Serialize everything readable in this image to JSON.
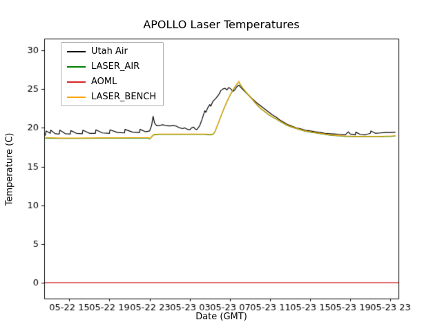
{
  "chart_data": {
    "type": "line",
    "title": "APOLLO Laser Temperatures",
    "xlabel": "Date (GMT)",
    "ylabel": "Temperature (C)",
    "xlim": [
      12.5,
      47.8
    ],
    "ylim": [
      -2,
      31.5
    ],
    "grid": false,
    "legend_position": "upper left",
    "yticks": [
      0,
      5,
      10,
      15,
      20,
      25,
      30
    ],
    "xticks": [
      {
        "value": 15,
        "label": "05-22 15"
      },
      {
        "value": 19,
        "label": "05-22 19"
      },
      {
        "value": 23,
        "label": "05-22 23"
      },
      {
        "value": 27,
        "label": "05-23 03"
      },
      {
        "value": 31,
        "label": "05-23 07"
      },
      {
        "value": 35,
        "label": "05-23 11"
      },
      {
        "value": 39,
        "label": "05-23 15"
      },
      {
        "value": 43,
        "label": "05-23 19"
      },
      {
        "value": 47,
        "label": "05-23 23"
      }
    ],
    "series": [
      {
        "name": "Utah Air",
        "color": "#000000",
        "points": [
          [
            12.6,
            19.0
          ],
          [
            12.7,
            19.6
          ],
          [
            13.1,
            19.3
          ],
          [
            13.15,
            19.7
          ],
          [
            13.6,
            19.25
          ],
          [
            14.0,
            19.2
          ],
          [
            14.05,
            19.7
          ],
          [
            14.6,
            19.25
          ],
          [
            15.1,
            19.2
          ],
          [
            15.15,
            19.65
          ],
          [
            15.7,
            19.3
          ],
          [
            16.3,
            19.25
          ],
          [
            16.35,
            19.7
          ],
          [
            17.0,
            19.3
          ],
          [
            17.6,
            19.3
          ],
          [
            17.65,
            19.75
          ],
          [
            18.3,
            19.35
          ],
          [
            19.0,
            19.3
          ],
          [
            19.05,
            19.75
          ],
          [
            19.8,
            19.4
          ],
          [
            20.5,
            19.35
          ],
          [
            20.55,
            19.8
          ],
          [
            21.3,
            19.45
          ],
          [
            22.0,
            19.4
          ],
          [
            22.05,
            19.8
          ],
          [
            22.6,
            19.5
          ],
          [
            23.0,
            19.6
          ],
          [
            23.2,
            20.3
          ],
          [
            23.35,
            21.5
          ],
          [
            23.5,
            20.6
          ],
          [
            23.7,
            20.3
          ],
          [
            24.0,
            20.3
          ],
          [
            24.3,
            20.4
          ],
          [
            24.6,
            20.3
          ],
          [
            25.0,
            20.25
          ],
          [
            25.4,
            20.3
          ],
          [
            25.7,
            20.2
          ],
          [
            26.0,
            20.0
          ],
          [
            26.3,
            19.9
          ],
          [
            26.5,
            20.0
          ],
          [
            26.8,
            19.8
          ],
          [
            27.0,
            19.75
          ],
          [
            27.2,
            20.0
          ],
          [
            27.4,
            20.1
          ],
          [
            27.5,
            19.9
          ],
          [
            27.7,
            19.75
          ],
          [
            28.0,
            20.3
          ],
          [
            28.2,
            21.0
          ],
          [
            28.4,
            21.8
          ],
          [
            28.5,
            22.2
          ],
          [
            28.6,
            22.0
          ],
          [
            28.8,
            22.6
          ],
          [
            29.0,
            23.0
          ],
          [
            29.1,
            22.8
          ],
          [
            29.3,
            23.4
          ],
          [
            29.6,
            23.8
          ],
          [
            29.9,
            24.3
          ],
          [
            30.1,
            24.8
          ],
          [
            30.3,
            25.0
          ],
          [
            30.5,
            25.1
          ],
          [
            30.7,
            24.9
          ],
          [
            30.9,
            25.2
          ],
          [
            31.1,
            25.0
          ],
          [
            31.3,
            24.7
          ],
          [
            31.5,
            24.9
          ],
          [
            31.7,
            25.3
          ],
          [
            31.9,
            25.5
          ],
          [
            32.1,
            25.2
          ],
          [
            32.4,
            24.8
          ],
          [
            32.8,
            24.3
          ],
          [
            33.2,
            23.8
          ],
          [
            33.6,
            23.3
          ],
          [
            34.0,
            22.9
          ],
          [
            34.4,
            22.5
          ],
          [
            34.8,
            22.1
          ],
          [
            35.2,
            21.7
          ],
          [
            35.6,
            21.4
          ],
          [
            36.0,
            21.0
          ],
          [
            36.4,
            20.7
          ],
          [
            36.8,
            20.4
          ],
          [
            37.2,
            20.2
          ],
          [
            37.6,
            20.0
          ],
          [
            38.0,
            19.9
          ],
          [
            38.5,
            19.7
          ],
          [
            39.0,
            19.6
          ],
          [
            39.5,
            19.5
          ],
          [
            40.0,
            19.4
          ],
          [
            40.5,
            19.3
          ],
          [
            41.0,
            19.25
          ],
          [
            41.5,
            19.2
          ],
          [
            42.0,
            19.15
          ],
          [
            42.5,
            19.1
          ],
          [
            42.8,
            19.5
          ],
          [
            43.0,
            19.2
          ],
          [
            43.5,
            19.1
          ],
          [
            43.55,
            19.45
          ],
          [
            44.0,
            19.15
          ],
          [
            44.5,
            19.1
          ],
          [
            45.0,
            19.3
          ],
          [
            45.05,
            19.6
          ],
          [
            45.5,
            19.3
          ],
          [
            46.0,
            19.35
          ],
          [
            46.5,
            19.4
          ],
          [
            47.0,
            19.4
          ],
          [
            47.5,
            19.45
          ]
        ]
      },
      {
        "name": "LASER_AIR",
        "color": "#008000",
        "points": [
          [
            12.6,
            18.7
          ],
          [
            14,
            18.65
          ],
          [
            16,
            18.65
          ],
          [
            18,
            18.67
          ],
          [
            20,
            18.67
          ],
          [
            22,
            18.7
          ],
          [
            22.9,
            18.7
          ],
          [
            23.0,
            18.55
          ],
          [
            23.1,
            18.7
          ],
          [
            23.4,
            19.1
          ],
          [
            24,
            19.15
          ],
          [
            25,
            19.15
          ],
          [
            26,
            19.15
          ],
          [
            27,
            19.15
          ],
          [
            28,
            19.15
          ],
          [
            28.5,
            19.15
          ],
          [
            29.0,
            19.1
          ],
          [
            29.3,
            19.15
          ],
          [
            29.5,
            19.45
          ],
          [
            29.8,
            20.45
          ],
          [
            30.1,
            21.45
          ],
          [
            30.4,
            22.45
          ],
          [
            30.7,
            23.35
          ],
          [
            31.0,
            24.15
          ],
          [
            31.3,
            24.85
          ],
          [
            31.6,
            25.45
          ],
          [
            31.9,
            25.95
          ],
          [
            32.0,
            25.65
          ],
          [
            32.2,
            25.25
          ],
          [
            32.5,
            24.75
          ],
          [
            32.9,
            24.15
          ],
          [
            33.3,
            23.55
          ],
          [
            33.7,
            22.95
          ],
          [
            34.1,
            22.45
          ],
          [
            34.5,
            22.05
          ],
          [
            34.9,
            21.65
          ],
          [
            35.3,
            21.35
          ],
          [
            35.7,
            21.05
          ],
          [
            36.1,
            20.75
          ],
          [
            36.5,
            20.45
          ],
          [
            37.0,
            20.15
          ],
          [
            37.5,
            19.95
          ],
          [
            38.0,
            19.75
          ],
          [
            38.5,
            19.55
          ],
          [
            39.0,
            19.45
          ],
          [
            39.5,
            19.35
          ],
          [
            40.0,
            19.25
          ],
          [
            40.5,
            19.15
          ],
          [
            41.0,
            19.05
          ],
          [
            41.5,
            19.0
          ],
          [
            42.0,
            18.95
          ],
          [
            42.5,
            18.9
          ],
          [
            43.0,
            18.9
          ],
          [
            43.5,
            18.85
          ],
          [
            44.0,
            18.85
          ],
          [
            44.5,
            18.85
          ],
          [
            45.0,
            18.85
          ],
          [
            45.5,
            18.85
          ],
          [
            46.0,
            18.85
          ],
          [
            46.5,
            18.9
          ],
          [
            47.0,
            18.9
          ],
          [
            47.5,
            18.95
          ]
        ]
      },
      {
        "name": "AOML",
        "color": "#d62728",
        "points": [
          [
            12.5,
            0.05
          ],
          [
            47.8,
            0.05
          ]
        ]
      },
      {
        "name": "LASER_BENCH",
        "color": "#ffa500",
        "points": [
          [
            12.6,
            18.75
          ],
          [
            14,
            18.7
          ],
          [
            16,
            18.7
          ],
          [
            18,
            18.72
          ],
          [
            20,
            18.72
          ],
          [
            22,
            18.75
          ],
          [
            22.9,
            18.75
          ],
          [
            23.0,
            18.6
          ],
          [
            23.1,
            18.75
          ],
          [
            23.4,
            19.15
          ],
          [
            24,
            19.2
          ],
          [
            25,
            19.2
          ],
          [
            26,
            19.2
          ],
          [
            27,
            19.2
          ],
          [
            28,
            19.2
          ],
          [
            28.5,
            19.2
          ],
          [
            29.0,
            19.15
          ],
          [
            29.3,
            19.2
          ],
          [
            29.5,
            19.5
          ],
          [
            29.8,
            20.5
          ],
          [
            30.1,
            21.5
          ],
          [
            30.4,
            22.5
          ],
          [
            30.7,
            23.4
          ],
          [
            31.0,
            24.2
          ],
          [
            31.3,
            24.9
          ],
          [
            31.6,
            25.5
          ],
          [
            31.9,
            26.0
          ],
          [
            32.0,
            25.7
          ],
          [
            32.2,
            25.3
          ],
          [
            32.5,
            24.8
          ],
          [
            32.9,
            24.2
          ],
          [
            33.3,
            23.6
          ],
          [
            33.7,
            23.0
          ],
          [
            34.1,
            22.5
          ],
          [
            34.5,
            22.1
          ],
          [
            34.9,
            21.7
          ],
          [
            35.3,
            21.4
          ],
          [
            35.7,
            21.1
          ],
          [
            36.1,
            20.8
          ],
          [
            36.5,
            20.5
          ],
          [
            37.0,
            20.2
          ],
          [
            37.5,
            20.0
          ],
          [
            38.0,
            19.8
          ],
          [
            38.5,
            19.6
          ],
          [
            39.0,
            19.5
          ],
          [
            39.5,
            19.4
          ],
          [
            40.0,
            19.3
          ],
          [
            40.5,
            19.2
          ],
          [
            41.0,
            19.1
          ],
          [
            41.5,
            19.05
          ],
          [
            42.0,
            19.0
          ],
          [
            42.5,
            18.95
          ],
          [
            43.0,
            18.95
          ],
          [
            43.5,
            18.9
          ],
          [
            44.0,
            18.9
          ],
          [
            44.5,
            18.9
          ],
          [
            45.0,
            18.9
          ],
          [
            45.5,
            18.9
          ],
          [
            46.0,
            18.9
          ],
          [
            46.5,
            18.95
          ],
          [
            47.0,
            18.95
          ],
          [
            47.5,
            19.0
          ]
        ]
      }
    ]
  }
}
